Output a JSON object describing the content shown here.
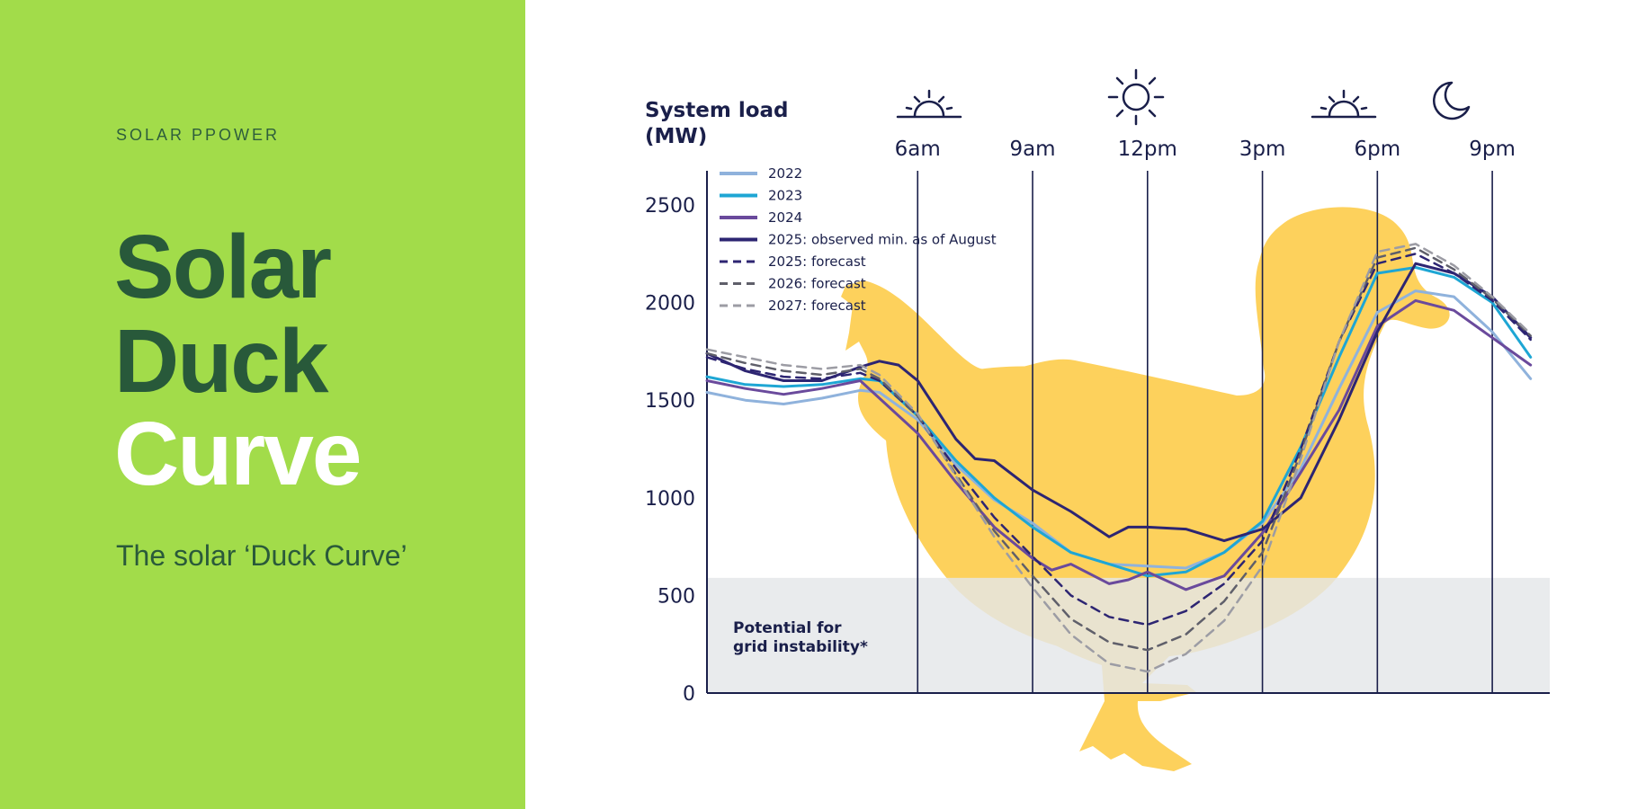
{
  "panel": {
    "eyebrow": "SOLAR PPOWER",
    "title_line1": "Solar",
    "title_line2": "Duck",
    "title_line3": "Curve",
    "subtitle": "The solar ‘Duck Curve’"
  },
  "colors": {
    "panel_bg": "#a2dc4a",
    "title_dark": "#28593a",
    "duck": "#fdd15c",
    "band": "#e4e6e9",
    "axis": "#1a1f4a"
  },
  "chart_data": {
    "type": "line",
    "ylabel": "System load\n(MW)",
    "ylim": [
      0,
      2700
    ],
    "yticks": [
      0,
      500,
      1000,
      1500,
      2000,
      2500
    ],
    "xlim": [
      0.5,
      22.5
    ],
    "time_markers": [
      {
        "hour": 6,
        "label": "6am",
        "icon": "sunrise-icon"
      },
      {
        "hour": 9,
        "label": "9am",
        "icon": ""
      },
      {
        "hour": 12,
        "label": "12pm",
        "icon": "sun-icon"
      },
      {
        "hour": 15,
        "label": "3pm",
        "icon": ""
      },
      {
        "hour": 18,
        "label": "6pm",
        "icon": "sunset-icon"
      },
      {
        "hour": 21,
        "label": "9pm",
        "icon": "moon-icon"
      }
    ],
    "band": {
      "from": 0,
      "to": 590,
      "label": "Potential for\ngrid instability*"
    },
    "legend_position": "top-left",
    "grid": false,
    "series": [
      {
        "name": "2022",
        "color": "#8fb2dc",
        "dash": false,
        "width": 3,
        "x": [
          0.5,
          1.5,
          2.5,
          3.5,
          4.5,
          5,
          6,
          7,
          8,
          9,
          10,
          11,
          12,
          13,
          14,
          15,
          16,
          17,
          18,
          19,
          20,
          21,
          22
        ],
        "y": [
          1540,
          1500,
          1480,
          1510,
          1550,
          1540,
          1400,
          1170,
          990,
          870,
          720,
          660,
          650,
          640,
          720,
          870,
          1150,
          1560,
          1950,
          2060,
          2030,
          1850,
          1610
        ]
      },
      {
        "name": "2023",
        "color": "#1ea6d4",
        "dash": false,
        "width": 3,
        "x": [
          0.5,
          1.5,
          2.5,
          3.5,
          4.5,
          5,
          6,
          7,
          8,
          9,
          10,
          11,
          12,
          13,
          14,
          15,
          16,
          17,
          18,
          19,
          20,
          21,
          22
        ],
        "y": [
          1620,
          1580,
          1570,
          1580,
          1610,
          1600,
          1420,
          1190,
          1000,
          850,
          720,
          660,
          600,
          620,
          720,
          880,
          1260,
          1720,
          2150,
          2180,
          2130,
          2000,
          1720
        ]
      },
      {
        "name": "2024",
        "color": "#6a4a9c",
        "dash": false,
        "width": 3,
        "x": [
          0.5,
          1.5,
          2.5,
          3.5,
          4.5,
          5,
          6,
          7,
          8,
          9,
          9.5,
          10,
          11,
          11.5,
          12,
          13,
          14,
          15,
          16,
          17,
          18,
          19,
          20,
          21,
          22
        ],
        "y": [
          1600,
          1560,
          1530,
          1560,
          1600,
          1510,
          1330,
          1080,
          850,
          690,
          630,
          660,
          560,
          580,
          620,
          530,
          600,
          820,
          1130,
          1450,
          1880,
          2010,
          1960,
          1820,
          1680
        ]
      },
      {
        "name": "2025: observed min. as of August",
        "color": "#2d2572",
        "dash": false,
        "width": 3,
        "x": [
          0.5,
          1.5,
          2.5,
          3.5,
          4.5,
          5,
          5.5,
          6,
          7,
          7.5,
          8,
          9,
          10,
          11,
          11.5,
          12,
          13,
          14,
          15,
          16,
          17,
          18,
          19,
          20,
          21,
          22
        ],
        "y": [
          1740,
          1650,
          1600,
          1600,
          1670,
          1700,
          1680,
          1600,
          1300,
          1200,
          1190,
          1040,
          930,
          800,
          850,
          850,
          840,
          780,
          840,
          1000,
          1400,
          1850,
          2200,
          2150,
          2030,
          1820
        ]
      },
      {
        "name": "2025: forecast",
        "color": "#2d2572",
        "dash": true,
        "width": 2.5,
        "x": [
          0.5,
          1.5,
          2.5,
          3.5,
          4.5,
          5,
          6,
          7,
          8,
          9,
          10,
          11,
          12,
          13,
          14,
          15,
          16,
          17,
          18,
          19,
          20,
          21,
          22
        ],
        "y": [
          1720,
          1660,
          1620,
          1610,
          1640,
          1600,
          1420,
          1150,
          900,
          700,
          500,
          390,
          350,
          420,
          560,
          780,
          1250,
          1800,
          2200,
          2250,
          2150,
          2010,
          1810
        ]
      },
      {
        "name": "2026: forecast",
        "color": "#5f5f6a",
        "dash": true,
        "width": 2.5,
        "x": [
          0.5,
          1.5,
          2.5,
          3.5,
          4.5,
          5,
          6,
          7,
          8,
          9,
          10,
          11,
          12,
          13,
          14,
          15,
          16,
          17,
          18,
          19,
          20,
          21,
          22
        ],
        "y": [
          1740,
          1690,
          1650,
          1630,
          1660,
          1610,
          1420,
          1120,
          830,
          600,
          380,
          260,
          220,
          300,
          470,
          720,
          1230,
          1800,
          2230,
          2280,
          2170,
          2020,
          1830
        ]
      },
      {
        "name": "2027: forecast",
        "color": "#9c9ca4",
        "dash": true,
        "width": 2.5,
        "x": [
          0.5,
          1.5,
          2.5,
          3.5,
          4.5,
          5,
          6,
          7,
          8,
          9,
          10,
          11,
          12,
          13,
          14,
          15,
          16,
          17,
          18,
          19,
          20,
          21,
          22
        ],
        "y": [
          1760,
          1720,
          1680,
          1660,
          1680,
          1630,
          1430,
          1110,
          800,
          540,
          300,
          150,
          110,
          200,
          370,
          650,
          1200,
          1800,
          2260,
          2300,
          2190,
          2030,
          1840
        ]
      }
    ]
  }
}
